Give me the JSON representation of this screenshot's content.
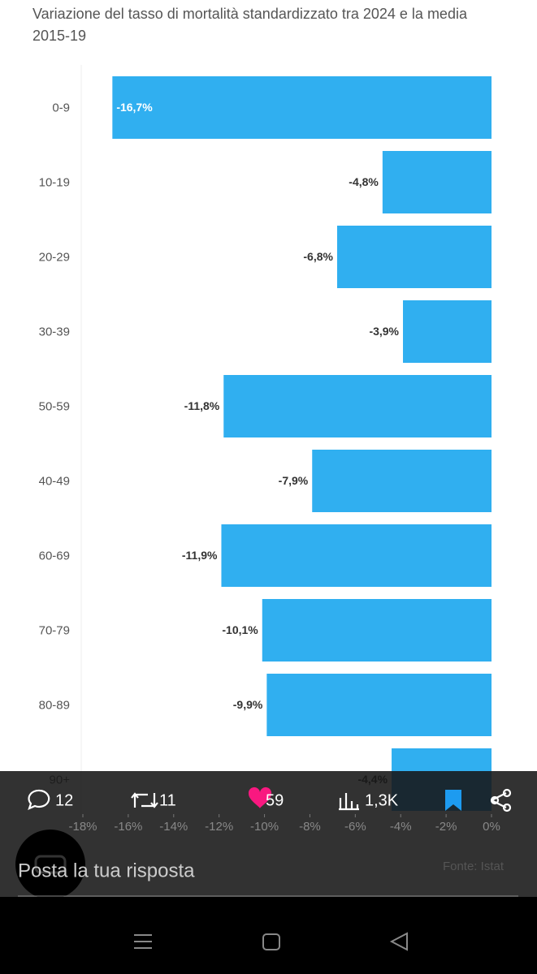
{
  "chart_data": {
    "type": "hbar",
    "title": "Variazione del tasso di mortalità standardizzato tra 2024 e la media 2015-19",
    "source": "Fonte: Istat",
    "categories": [
      "0-9",
      "10-19",
      "20-29",
      "30-39",
      "50-59",
      "40-49",
      "60-69",
      "70-79",
      "80-89",
      "90+"
    ],
    "values": [
      -16.7,
      -4.8,
      -6.8,
      -3.9,
      -11.8,
      -7.9,
      -11.9,
      -10.1,
      -9.9,
      -4.4
    ],
    "value_labels": [
      "-16,7%",
      "-4,8%",
      "-6,8%",
      "-3,9%",
      "-11,8%",
      "-7,9%",
      "-11,9%",
      "-10,1%",
      "-9,9%",
      "-4,4%"
    ],
    "color": "#30aff0",
    "xlim": [
      -18,
      0
    ],
    "xticks": [
      {
        "value": -18,
        "label": "-18%"
      },
      {
        "value": -16,
        "label": "-16%"
      },
      {
        "value": -14,
        "label": "-14%"
      },
      {
        "value": -12,
        "label": "-12%"
      },
      {
        "value": -10,
        "label": "-10%"
      },
      {
        "value": -8,
        "label": "-8%"
      },
      {
        "value": -6,
        "label": "-6%"
      },
      {
        "value": -4,
        "label": "-4%"
      },
      {
        "value": -2,
        "label": "-2%"
      },
      {
        "value": 0,
        "label": "0%"
      }
    ]
  },
  "toolbar": {
    "replies": "12",
    "retweets": "11",
    "likes": "59",
    "views": "1,3K"
  },
  "reply_placeholder": "Posta la tua risposta"
}
